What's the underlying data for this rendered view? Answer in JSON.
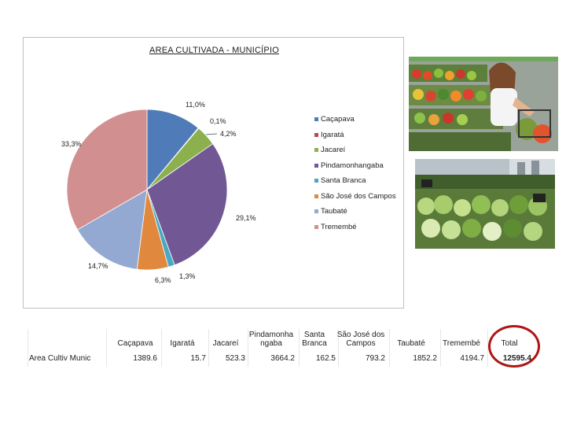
{
  "chart_data": {
    "type": "pie",
    "title": "AREA CULTIVADA - MUNICÍPIO",
    "legend_position": "right",
    "categories": [
      "Caçapava",
      "Igaratá",
      "Jacareí",
      "Pindamonhangaba",
      "Santa Branca",
      "São José dos Campos",
      "Taubaté",
      "Tremembé"
    ],
    "values": [
      1389.6,
      15.7,
      523.3,
      3664.2,
      162.5,
      793.2,
      1852.2,
      4194.7
    ],
    "percent_labels": [
      "11,0%",
      "0,1%",
      "4,2%",
      "29,1%",
      "1,3%",
      "6,3%",
      "14,7%",
      "33,3%"
    ],
    "colors": [
      "#4f7cb8",
      "#b84d49",
      "#8db04f",
      "#715894",
      "#4aa9c2",
      "#e0893e",
      "#93a9d1",
      "#d28f8f"
    ]
  },
  "table": {
    "row_label": "Area Cultiv Munic",
    "headers": [
      "Caçapava",
      "Igaratá",
      "Jacareí",
      "Pindamonhangaba",
      "Santa Branca",
      "São José dos Campos",
      "Taubaté",
      "Tremembé",
      "Total"
    ],
    "header_lines": [
      [
        "",
        "Caçapava"
      ],
      [
        "",
        "Igaratá"
      ],
      [
        "",
        "Jacareí"
      ],
      [
        "Pindamonha",
        "ngaba"
      ],
      [
        "Santa",
        "Branca"
      ],
      [
        "São José dos",
        "Campos"
      ],
      [
        "",
        "Taubaté"
      ],
      [
        "",
        "Tremembé"
      ],
      [
        "",
        "Total"
      ]
    ],
    "values": [
      "1389.6",
      "15.7",
      "523.3",
      "3664.2",
      "162.5",
      "793.2",
      "1852.2",
      "4194.7",
      "12595.4"
    ]
  },
  "images": {
    "top_photo": "woman-shopping-produce-photo",
    "bottom_photo": "vegetable-market-stall-photo"
  }
}
